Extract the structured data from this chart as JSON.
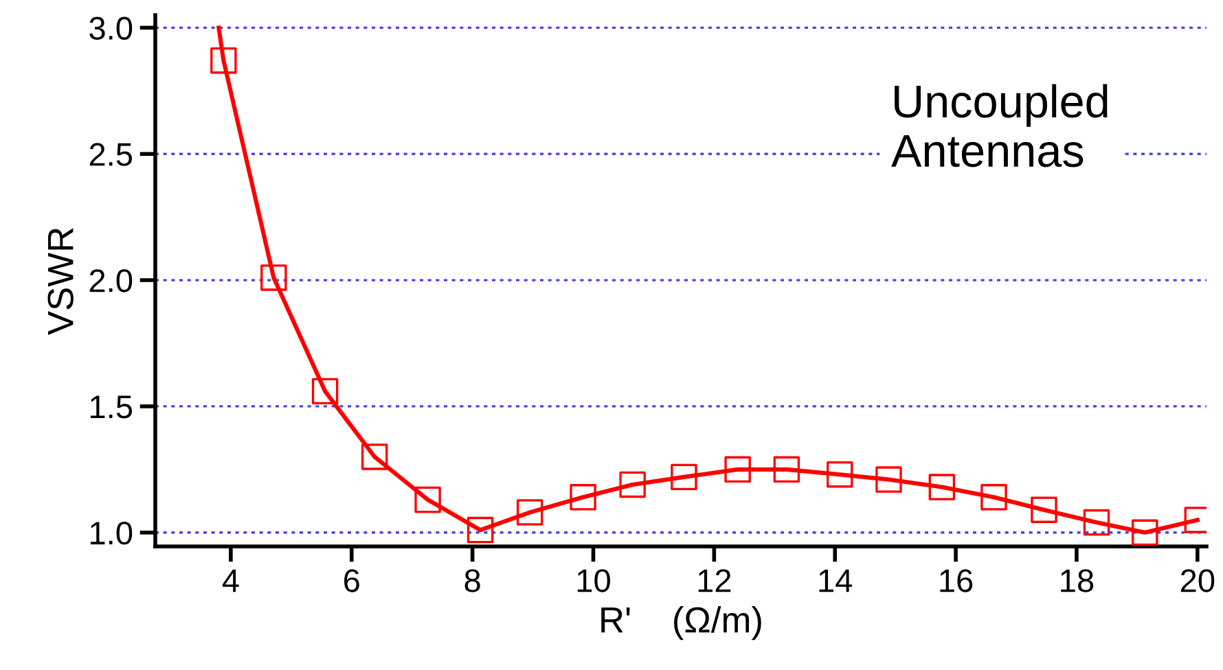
{
  "chart_data": {
    "type": "line",
    "xlabel": "R'    (Ω/m)",
    "ylabel": "VSWR",
    "annotations": [
      "Uncoupled\nAntennas"
    ],
    "series": [
      {
        "color": "#ff0000",
        "marker": "none",
        "x": [
          3.8,
          3.88,
          4.71,
          5.56,
          6.38,
          7.26,
          8.13,
          8.95,
          9.83,
          10.65,
          11.5,
          12.39,
          13.2,
          14.08,
          14.89,
          15.77,
          16.63,
          17.46,
          18.33,
          19.13,
          20.0
        ],
        "values": [
          3.0,
          2.87,
          2.01,
          1.56,
          1.3,
          1.13,
          1.01,
          1.08,
          1.14,
          1.19,
          1.22,
          1.25,
          1.25,
          1.23,
          1.21,
          1.18,
          1.14,
          1.09,
          1.04,
          1.0,
          1.05
        ]
      },
      {
        "type": "scatter",
        "color": "#ff0000",
        "marker": "square",
        "x": [
          3.88,
          4.71,
          5.56,
          6.38,
          7.26,
          8.13,
          8.95,
          9.83,
          10.65,
          11.5,
          12.39,
          13.2,
          14.08,
          14.89,
          15.77,
          16.63,
          17.46,
          18.33,
          19.13,
          20.0
        ],
        "values": [
          2.87,
          2.01,
          1.56,
          1.3,
          1.13,
          1.01,
          1.08,
          1.14,
          1.19,
          1.22,
          1.25,
          1.25,
          1.23,
          1.21,
          1.18,
          1.14,
          1.09,
          1.04,
          1.0,
          1.05
        ]
      }
    ],
    "xlim": [
      2.75,
      20.15
    ],
    "ylim": [
      0.945,
      3.05
    ],
    "xticks": [
      4,
      6,
      8,
      10,
      12,
      14,
      16,
      18,
      20
    ],
    "yticks": [
      {
        "value": 1.0,
        "label": "1.0"
      },
      {
        "value": 1.5,
        "label": "1.5"
      },
      {
        "value": 2.0,
        "label": "2.0"
      },
      {
        "value": 2.5,
        "label": "2.5"
      },
      {
        "value": 3.0,
        "label": "3.0"
      }
    ],
    "grid": "y",
    "legend": false
  }
}
